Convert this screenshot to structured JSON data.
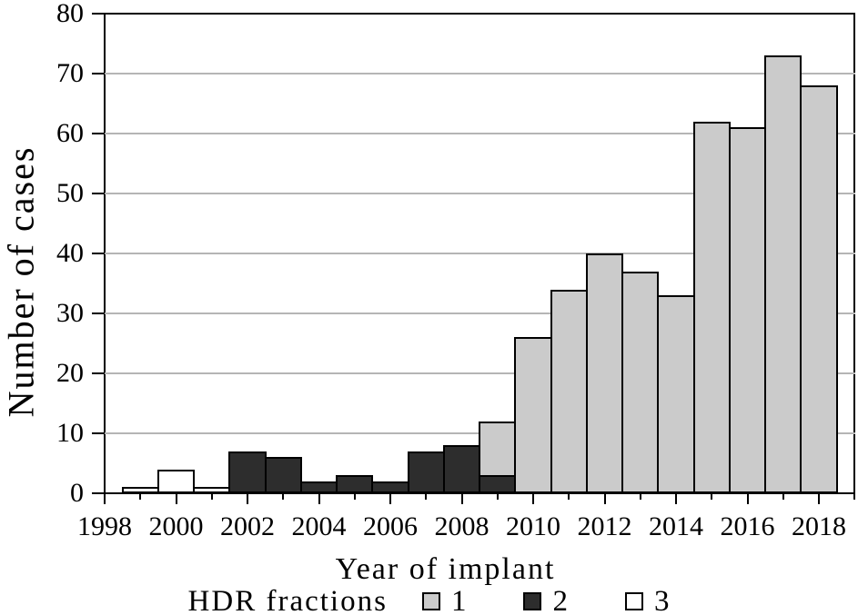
{
  "chart_data": {
    "type": "bar",
    "stacked": true,
    "xlabel": "Year of implant",
    "ylabel": "Number of cases",
    "legend_title": "HDR fractions",
    "legend_position": "bottom-center",
    "legend_entries": [
      {
        "label": "1",
        "color": "#cbcbcb"
      },
      {
        "label": "2",
        "color": "#2d2d2d"
      },
      {
        "label": "3",
        "color": "#ffffff"
      }
    ],
    "ylim": [
      0,
      80
    ],
    "yticks": [
      0,
      10,
      20,
      30,
      40,
      50,
      60,
      70,
      80
    ],
    "x_major_years": [
      1998,
      2000,
      2002,
      2004,
      2006,
      2008,
      2010,
      2012,
      2014,
      2016,
      2018
    ],
    "x_minor_years": [
      1999,
      2001,
      2003,
      2005,
      2007,
      2009,
      2011,
      2013,
      2015,
      2017,
      2019
    ],
    "grid": "horizontal",
    "axis_color": "#000000",
    "gridline_color": "#b5b5b5",
    "bar_outline_color": "#000000",
    "bars": [
      {
        "year": 1999,
        "segments": [
          {
            "fraction": "3",
            "value": 1
          }
        ]
      },
      {
        "year": 2000,
        "segments": [
          {
            "fraction": "3",
            "value": 4
          }
        ]
      },
      {
        "year": 2001,
        "segments": [
          {
            "fraction": "3",
            "value": 1
          }
        ]
      },
      {
        "year": 2002,
        "segments": [
          {
            "fraction": "2",
            "value": 7
          }
        ]
      },
      {
        "year": 2003,
        "segments": [
          {
            "fraction": "2",
            "value": 6
          }
        ]
      },
      {
        "year": 2004,
        "segments": [
          {
            "fraction": "2",
            "value": 2
          }
        ]
      },
      {
        "year": 2005,
        "segments": [
          {
            "fraction": "2",
            "value": 3
          }
        ]
      },
      {
        "year": 2006,
        "segments": [
          {
            "fraction": "2",
            "value": 2
          }
        ]
      },
      {
        "year": 2007,
        "segments": [
          {
            "fraction": "2",
            "value": 7
          }
        ]
      },
      {
        "year": 2008,
        "segments": [
          {
            "fraction": "2",
            "value": 8
          }
        ]
      },
      {
        "year": 2009,
        "segments": [
          {
            "fraction": "2",
            "value": 3
          },
          {
            "fraction": "1",
            "value": 9
          }
        ]
      },
      {
        "year": 2010,
        "segments": [
          {
            "fraction": "1",
            "value": 26
          }
        ]
      },
      {
        "year": 2011,
        "segments": [
          {
            "fraction": "1",
            "value": 34
          }
        ]
      },
      {
        "year": 2012,
        "segments": [
          {
            "fraction": "1",
            "value": 40
          }
        ]
      },
      {
        "year": 2013,
        "segments": [
          {
            "fraction": "1",
            "value": 37
          }
        ]
      },
      {
        "year": 2014,
        "segments": [
          {
            "fraction": "1",
            "value": 33
          }
        ]
      },
      {
        "year": 2015,
        "segments": [
          {
            "fraction": "1",
            "value": 62
          }
        ]
      },
      {
        "year": 2016,
        "segments": [
          {
            "fraction": "1",
            "value": 61
          }
        ]
      },
      {
        "year": 2017,
        "segments": [
          {
            "fraction": "1",
            "value": 73
          }
        ]
      },
      {
        "year": 2018,
        "segments": [
          {
            "fraction": "1",
            "value": 68
          }
        ]
      }
    ]
  }
}
